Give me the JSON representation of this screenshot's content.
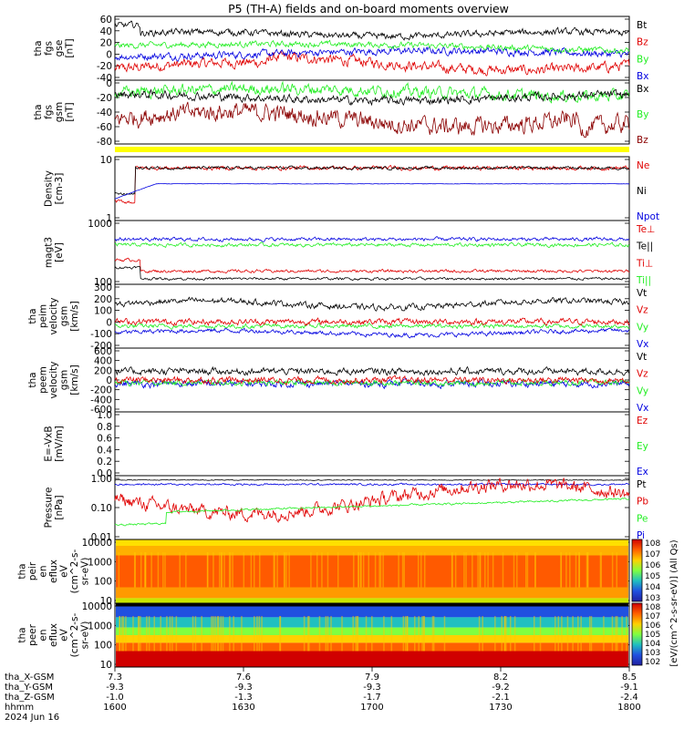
{
  "title": "P5 (TH-A) fields and on-board moments overview",
  "colors": {
    "black": "#000000",
    "red": "#e00000",
    "green": "#22ee22",
    "blue": "#0000e0",
    "darkred": "#8b0000",
    "yellow": "#ffff00"
  },
  "panels": [
    {
      "id": "fgs-gse",
      "ylabel": [
        "tha",
        "fgs",
        "gse",
        "[nT]"
      ],
      "ticks": [
        "60",
        "40",
        "20",
        "0",
        "-20",
        "-40"
      ],
      "legend": [
        {
          "label": "Bt",
          "color": "#000000"
        },
        {
          "label": "Bz",
          "color": "#e00000"
        },
        {
          "label": "By",
          "color": "#22ee22"
        },
        {
          "label": "Bx",
          "color": "#0000e0"
        }
      ]
    },
    {
      "id": "fgs-gsm",
      "ylabel": [
        "tha",
        "fgs",
        "gsm",
        "[nT]"
      ],
      "ticks": [
        "0",
        "-20",
        "-40",
        "-60",
        "-80"
      ],
      "legend": [
        {
          "label": "Bx",
          "color": "#000000"
        },
        {
          "label": "By",
          "color": "#22ee22"
        },
        {
          "label": "Bz",
          "color": "#8b0000"
        }
      ]
    },
    {
      "id": "density",
      "ylabel": [
        "Density",
        "[cm-3]"
      ],
      "ticks": [
        "10",
        "1"
      ],
      "legend": [
        {
          "label": "Ne",
          "color": "#e00000"
        },
        {
          "label": "Ni",
          "color": "#000000"
        },
        {
          "label": "Npot",
          "color": "#0000e0"
        }
      ]
    },
    {
      "id": "temperature",
      "ylabel": [
        "magt3",
        "[eV]"
      ],
      "ticks": [
        "1000",
        "100"
      ],
      "legend": [
        {
          "label": "Te⊥",
          "color": "#e00000"
        },
        {
          "label": "Te||",
          "color": "#000000"
        },
        {
          "label": "Ti⊥",
          "color": "#e00000"
        },
        {
          "label": "Ti||",
          "color": "#22ee22"
        }
      ]
    },
    {
      "id": "peim",
      "ylabel": [
        "tha",
        "peim",
        "velocity",
        "gsm",
        "[km/s]"
      ],
      "ticks": [
        "300",
        "200",
        "100",
        "0",
        "-100",
        "-200"
      ],
      "legend": [
        {
          "label": "Vt",
          "color": "#000000"
        },
        {
          "label": "Vz",
          "color": "#e00000"
        },
        {
          "label": "Vy",
          "color": "#22ee22"
        },
        {
          "label": "Vx",
          "color": "#0000e0"
        }
      ]
    },
    {
      "id": "peem",
      "ylabel": [
        "tha",
        "peem",
        "velocity",
        "gsm",
        "[km/s]"
      ],
      "ticks": [
        "600",
        "400",
        "200",
        "0",
        "-200",
        "-400",
        "-600"
      ],
      "legend": [
        {
          "label": "Vt",
          "color": "#000000"
        },
        {
          "label": "Vz",
          "color": "#e00000"
        },
        {
          "label": "Vy",
          "color": "#22ee22"
        },
        {
          "label": "Vx",
          "color": "#0000e0"
        }
      ]
    },
    {
      "id": "efield",
      "ylabel": [
        "E=-VxB",
        "[mV/m]"
      ],
      "ticks": [
        "1.0",
        "0.8",
        "0.6",
        "0.4",
        "0.2",
        "0.0"
      ],
      "legend": [
        {
          "label": "Ez",
          "color": "#e00000"
        },
        {
          "label": "Ey",
          "color": "#22ee22"
        },
        {
          "label": "Ex",
          "color": "#0000e0"
        }
      ]
    },
    {
      "id": "pressure",
      "ylabel": [
        "Pressure",
        "[nPa]"
      ],
      "ticks": [
        "1.00",
        "0.10",
        "0.01"
      ],
      "legend": [
        {
          "label": "Pt",
          "color": "#000000"
        },
        {
          "label": "Pb",
          "color": "#e00000"
        },
        {
          "label": "Pe",
          "color": "#22ee22"
        },
        {
          "label": "Pi",
          "color": "#0000e0"
        }
      ]
    },
    {
      "id": "peir-spec",
      "ylabel": [
        "tha",
        "peir",
        "en",
        "eflux",
        "eV",
        "(cm^2-s-",
        "sr-eV)"
      ],
      "ticks": [
        "10000",
        "1000",
        "100",
        "10"
      ]
    },
    {
      "id": "peer-spec",
      "ylabel": [
        "tha",
        "peer",
        "en",
        "eflux",
        "eV",
        "(cm^2-s-",
        "sr-eV)"
      ],
      "ticks": [
        "10000",
        "1000",
        "100",
        "10"
      ]
    }
  ],
  "colorbar": {
    "label": "[eV/(cm^2-s-sr-eV)] (All Qs)",
    "upper_ticks": [
      "10^8",
      "10^7",
      "10^6",
      "10^5",
      "10^4",
      "10^3"
    ],
    "lower_ticks": [
      "10^8",
      "10^7",
      "10^6",
      "10^5",
      "10^4",
      "10^3",
      "10^2"
    ]
  },
  "xaxis": {
    "rows": [
      {
        "label": "tha_X-GSM",
        "values": [
          "7.3",
          "7.6",
          "7.9",
          "8.2",
          "8.5"
        ]
      },
      {
        "label": "tha_Y-GSM",
        "values": [
          "-9.3",
          "-9.3",
          "-9.3",
          "-9.2",
          "-9.1"
        ]
      },
      {
        "label": "tha_Z-GSM",
        "values": [
          "-1.0",
          "-1.3",
          "-1.7",
          "-2.1",
          "-2.4"
        ]
      },
      {
        "label": "hhmm",
        "values": [
          "1600",
          "1630",
          "1700",
          "1730",
          "1800"
        ]
      }
    ],
    "date": "2024 Jun 16"
  },
  "chart_data": {
    "type": "line",
    "title": "P5 (TH-A) fields and on-board moments overview",
    "x": [
      "1600",
      "1630",
      "1700",
      "1730",
      "1800"
    ],
    "xlabel": "hhmm",
    "date": "2024 Jun 16",
    "series_approx": [
      {
        "panel": "fgs-gse",
        "name": "Bt",
        "values": [
          32,
          35,
          30,
          33,
          30
        ]
      },
      {
        "panel": "fgs-gse",
        "name": "Bz",
        "values": [
          -25,
          -20,
          -15,
          -12,
          -15
        ]
      },
      {
        "panel": "fgs-gse",
        "name": "By",
        "values": [
          15,
          12,
          10,
          8,
          5
        ]
      },
      {
        "panel": "fgs-gse",
        "name": "Bx",
        "values": [
          -5,
          -8,
          -5,
          2,
          -10
        ]
      },
      {
        "panel": "fgs-gsm",
        "name": "Bz",
        "values": [
          -60,
          -50,
          -45,
          -50,
          -70
        ]
      },
      {
        "panel": "density",
        "name": "Ne",
        "values": [
          20,
          25,
          28,
          25,
          25
        ]
      },
      {
        "panel": "density",
        "name": "Npot",
        "values": [
          6,
          8,
          8,
          7,
          7
        ]
      },
      {
        "panel": "temperature",
        "name": "Te⊥",
        "values": [
          500,
          450,
          450,
          450,
          450
        ]
      },
      {
        "panel": "peim",
        "name": "Vt",
        "values": [
          150,
          120,
          140,
          110,
          100
        ]
      },
      {
        "panel": "pressure",
        "name": "Pt",
        "values": [
          0.9,
          0.9,
          0.95,
          0.9,
          0.9
        ]
      }
    ]
  }
}
